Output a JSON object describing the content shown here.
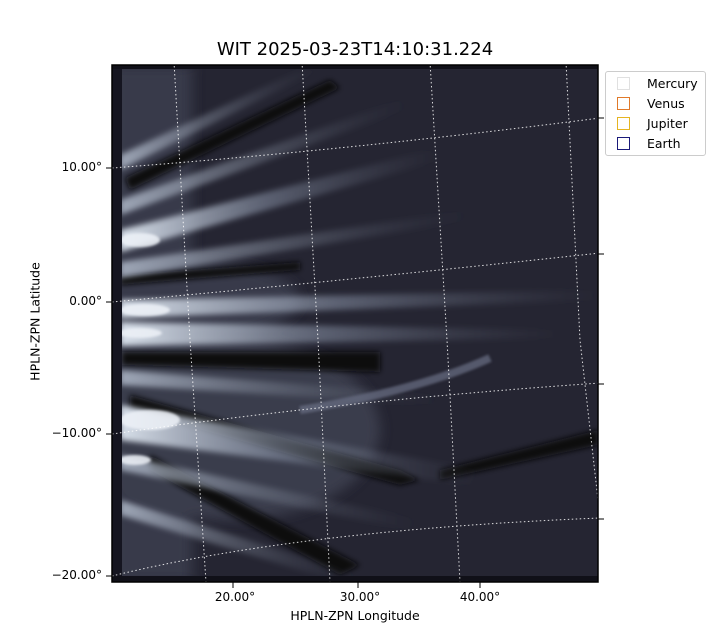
{
  "title": "WIT 2025-03-23T14:10:31.224",
  "axes": {
    "xlabel": "HPLN-ZPN Longitude",
    "ylabel": "HPLN-ZPN Latitude",
    "x_ticks": [
      "20.00°",
      "30.00°",
      "40.00°"
    ],
    "y_ticks": [
      "10.00°",
      "0.00°",
      "−10.00°",
      "−20.00°"
    ]
  },
  "legend": {
    "placement": "upper-right-outside",
    "items": [
      {
        "label": "Mercury",
        "color": "#e0e0e0"
      },
      {
        "label": "Venus",
        "color": "#e07a2a"
      },
      {
        "label": "Jupiter",
        "color": "#e6b422"
      },
      {
        "label": "Earth",
        "color": "#1a1a7a"
      }
    ]
  },
  "image": {
    "colormap": "bone",
    "background": "#1e1e2a",
    "grid": "dotted-white"
  }
}
